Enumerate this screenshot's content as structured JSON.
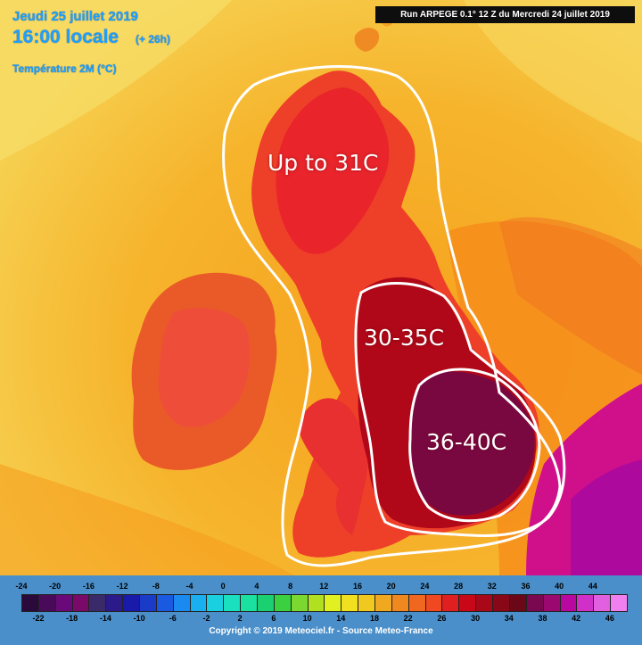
{
  "header": {
    "date": "Jeudi 25 juillet 2019",
    "time": "16:00 locale",
    "offset": "(+ 26h)",
    "parameter": "Température 2M (°C)",
    "run": "Run ARPEGE 0.1° 12 Z du Mercredi 24 juillet 2019"
  },
  "zones": [
    {
      "label": "Up to 31C"
    },
    {
      "label": "30-35C"
    },
    {
      "label": "36-40C"
    }
  ],
  "legend": {
    "top_ticks": [
      "-24",
      "-20",
      "-16",
      "-12",
      "-8",
      "-4",
      "0",
      "4",
      "8",
      "12",
      "16",
      "20",
      "24",
      "28",
      "32",
      "36",
      "40",
      "44"
    ],
    "bottom_ticks": [
      "-22",
      "-18",
      "-14",
      "-10",
      "-6",
      "-2",
      "2",
      "6",
      "10",
      "14",
      "18",
      "22",
      "26",
      "30",
      "34",
      "38",
      "42",
      "46"
    ],
    "colors": [
      "#2a0a3a",
      "#4a0a5a",
      "#6a0a7a",
      "#7a0a6a",
      "#3a2a6a",
      "#2a1a8a",
      "#1a1aaa",
      "#1a3ac8",
      "#1a5ae0",
      "#1a8af0",
      "#1ab0f0",
      "#1ad0e0",
      "#1ae0c0",
      "#1ae0a0",
      "#1ad070",
      "#3ad040",
      "#7ad830",
      "#b0e020",
      "#e0f020",
      "#f0e020",
      "#f0c820",
      "#f0a820",
      "#f08820",
      "#f06820",
      "#f04820",
      "#e02020",
      "#c80818",
      "#a80818",
      "#880818",
      "#6a0818",
      "#7a0850",
      "#9a0870",
      "#b808a0",
      "#d030c8",
      "#e060e0",
      "#f080f0"
    ]
  },
  "footer": {
    "copyright": "Copyright © 2019 Meteociel.fr - Source Meteo-France"
  }
}
